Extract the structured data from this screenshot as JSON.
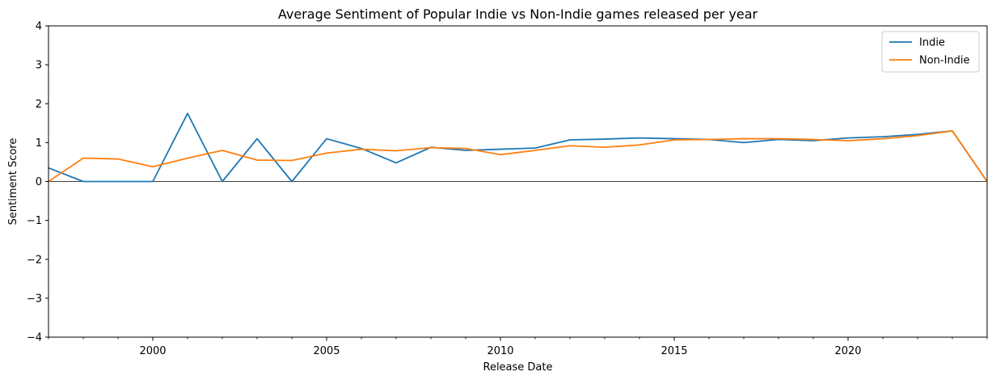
{
  "chart_data": {
    "type": "line",
    "title": "Average Sentiment of Popular Indie vs Non-Indie games released per year",
    "xlabel": "Release Date",
    "ylabel": "Sentiment Score",
    "xlim": [
      1997,
      2024
    ],
    "ylim": [
      -4,
      4
    ],
    "x_ticks": [
      2000,
      2005,
      2010,
      2015,
      2020
    ],
    "x_tick_labels": [
      "2000",
      "2005",
      "2010",
      "2015",
      "2020"
    ],
    "x_minor_ticks": [
      1997,
      1998,
      1999,
      2001,
      2002,
      2003,
      2004,
      2006,
      2007,
      2008,
      2009,
      2011,
      2012,
      2013,
      2014,
      2016,
      2017,
      2018,
      2019,
      2021,
      2022,
      2023,
      2024
    ],
    "y_ticks": [
      -4,
      -3,
      -2,
      -1,
      0,
      1,
      2,
      3,
      4
    ],
    "y_tick_labels": [
      "−4",
      "−3",
      "−2",
      "−1",
      "0",
      "1",
      "2",
      "3",
      "4"
    ],
    "grid": false,
    "zero_line": true,
    "legend_position": "upper-right",
    "x": [
      1997,
      1998,
      1999,
      2000,
      2001,
      2002,
      2003,
      2004,
      2005,
      2006,
      2007,
      2008,
      2009,
      2010,
      2011,
      2012,
      2013,
      2014,
      2015,
      2016,
      2017,
      2018,
      2019,
      2020,
      2021,
      2022,
      2023,
      2024
    ],
    "series": [
      {
        "name": "Indie",
        "color": "#1f77b4",
        "values": [
          0.35,
          0.0,
          0.0,
          0.0,
          1.75,
          0.0,
          1.1,
          0.0,
          1.1,
          0.85,
          0.48,
          0.88,
          0.8,
          0.83,
          0.86,
          1.07,
          1.09,
          1.12,
          1.1,
          1.08,
          1.0,
          1.08,
          1.05,
          1.12,
          1.15,
          1.21,
          1.3,
          0.0
        ]
      },
      {
        "name": "Non-Indie",
        "color": "#ff7f0e",
        "values": [
          0.0,
          0.6,
          0.58,
          0.38,
          0.6,
          0.8,
          0.55,
          0.54,
          0.73,
          0.83,
          0.79,
          0.87,
          0.85,
          0.69,
          0.8,
          0.92,
          0.88,
          0.94,
          1.07,
          1.08,
          1.1,
          1.1,
          1.08,
          1.05,
          1.1,
          1.18,
          1.3,
          0.0
        ]
      }
    ]
  }
}
